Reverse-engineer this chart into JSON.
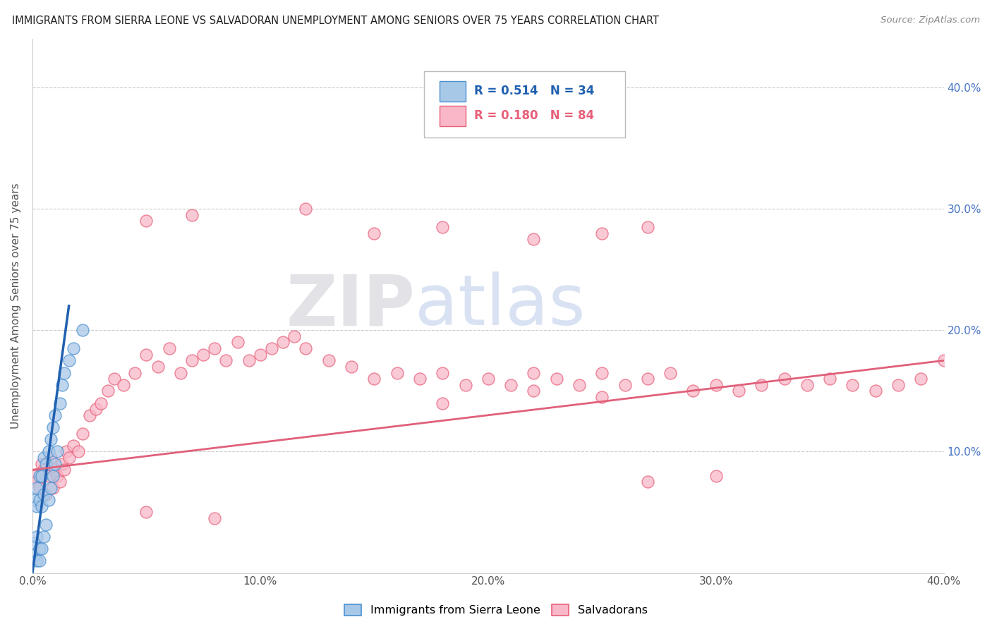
{
  "title": "IMMIGRANTS FROM SIERRA LEONE VS SALVADORAN UNEMPLOYMENT AMONG SENIORS OVER 75 YEARS CORRELATION CHART",
  "source": "Source: ZipAtlas.com",
  "ylabel": "Unemployment Among Seniors over 75 years",
  "xlim": [
    0.0,
    0.4
  ],
  "ylim": [
    0.0,
    0.44
  ],
  "x_ticks": [
    0.0,
    0.1,
    0.2,
    0.3,
    0.4
  ],
  "x_tick_labels": [
    "0.0%",
    "10.0%",
    "20.0%",
    "30.0%",
    "40.0%"
  ],
  "y_ticks": [
    0.0,
    0.1,
    0.2,
    0.3,
    0.4
  ],
  "y_tick_labels_right": [
    "",
    "10.0%",
    "20.0%",
    "30.0%",
    "40.0%"
  ],
  "legend_r_blue": "R = 0.514",
  "legend_n_blue": "N = 34",
  "legend_r_pink": "R = 0.180",
  "legend_n_pink": "N = 84",
  "blue_fill_color": "#a8c8e8",
  "pink_fill_color": "#f8b8c8",
  "blue_edge_color": "#4a90d0",
  "pink_edge_color": "#e8607a",
  "blue_line_color": "#2060b0",
  "pink_line_color": "#e0607a",
  "watermark_zip": "ZIP",
  "watermark_atlas": "atlas",
  "blue_scatter_x": [
    0.001,
    0.001,
    0.001,
    0.002,
    0.002,
    0.002,
    0.002,
    0.003,
    0.003,
    0.003,
    0.003,
    0.004,
    0.004,
    0.004,
    0.005,
    0.005,
    0.005,
    0.006,
    0.006,
    0.007,
    0.007,
    0.008,
    0.008,
    0.009,
    0.009,
    0.01,
    0.01,
    0.011,
    0.012,
    0.013,
    0.014,
    0.016,
    0.018,
    0.022
  ],
  "blue_scatter_y": [
    0.015,
    0.025,
    0.06,
    0.01,
    0.03,
    0.055,
    0.07,
    0.01,
    0.02,
    0.06,
    0.08,
    0.02,
    0.055,
    0.08,
    0.03,
    0.065,
    0.095,
    0.04,
    0.09,
    0.06,
    0.1,
    0.07,
    0.11,
    0.08,
    0.12,
    0.09,
    0.13,
    0.1,
    0.14,
    0.155,
    0.165,
    0.175,
    0.185,
    0.2
  ],
  "blue_line_x0": 0.0,
  "blue_line_y0": 0.0,
  "blue_line_x1_solid": 0.016,
  "blue_line_y1_solid": 0.22,
  "blue_line_x1_dash": 0.013,
  "blue_line_y1_dash": 0.44,
  "pink_line_x0": 0.0,
  "pink_line_y0": 0.085,
  "pink_line_x1": 0.4,
  "pink_line_y1": 0.175,
  "pink_scatter_x": [
    0.001,
    0.002,
    0.003,
    0.004,
    0.005,
    0.006,
    0.007,
    0.008,
    0.009,
    0.01,
    0.011,
    0.012,
    0.013,
    0.014,
    0.015,
    0.016,
    0.018,
    0.02,
    0.022,
    0.025,
    0.028,
    0.03,
    0.033,
    0.036,
    0.04,
    0.045,
    0.05,
    0.055,
    0.06,
    0.065,
    0.07,
    0.075,
    0.08,
    0.085,
    0.09,
    0.095,
    0.1,
    0.105,
    0.11,
    0.115,
    0.12,
    0.13,
    0.14,
    0.15,
    0.16,
    0.17,
    0.18,
    0.19,
    0.2,
    0.21,
    0.22,
    0.23,
    0.24,
    0.25,
    0.26,
    0.27,
    0.28,
    0.29,
    0.3,
    0.31,
    0.32,
    0.33,
    0.34,
    0.35,
    0.36,
    0.37,
    0.38,
    0.39,
    0.4,
    0.05,
    0.07,
    0.12,
    0.15,
    0.18,
    0.22,
    0.25,
    0.27,
    0.18,
    0.22,
    0.25,
    0.27,
    0.3,
    0.05,
    0.08
  ],
  "pink_scatter_y": [
    0.08,
    0.075,
    0.07,
    0.09,
    0.085,
    0.065,
    0.08,
    0.095,
    0.07,
    0.085,
    0.08,
    0.075,
    0.09,
    0.085,
    0.1,
    0.095,
    0.105,
    0.1,
    0.115,
    0.13,
    0.135,
    0.14,
    0.15,
    0.16,
    0.155,
    0.165,
    0.18,
    0.17,
    0.185,
    0.165,
    0.175,
    0.18,
    0.185,
    0.175,
    0.19,
    0.175,
    0.18,
    0.185,
    0.19,
    0.195,
    0.185,
    0.175,
    0.17,
    0.16,
    0.165,
    0.16,
    0.165,
    0.155,
    0.16,
    0.155,
    0.165,
    0.16,
    0.155,
    0.165,
    0.155,
    0.16,
    0.165,
    0.15,
    0.155,
    0.15,
    0.155,
    0.16,
    0.155,
    0.16,
    0.155,
    0.15,
    0.155,
    0.16,
    0.175,
    0.29,
    0.295,
    0.3,
    0.28,
    0.285,
    0.275,
    0.28,
    0.285,
    0.14,
    0.15,
    0.145,
    0.075,
    0.08,
    0.05,
    0.045
  ]
}
